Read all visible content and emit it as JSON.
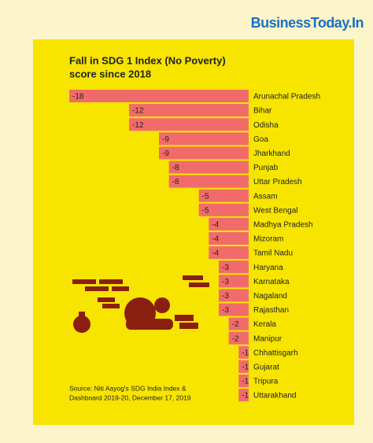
{
  "site_name": "BusinessToday.In",
  "chart_data": {
    "type": "hbar",
    "title": [
      "Fall in SDG 1 Index (No Poverty)",
      "score since 2018"
    ],
    "source": [
      "Source: Niti Aayog's SDG India Index &",
      "Dashboard 2019-20, December 17, 2019"
    ],
    "categories": [
      "Arunachal Pradesh",
      "Bihar",
      "Odisha",
      "Goa",
      "Jharkhand",
      "Punjab",
      "Uttar Pradesh",
      "Assam",
      "West Bengal",
      "Madhya Pradesh",
      "Mizoram",
      "Tamil Nadu",
      "Haryana",
      "Karnataka",
      "Nagaland",
      "Rajasthan",
      "Kerala",
      "Manipur",
      "Chhattisgarh",
      "Gujarat",
      "Tripura",
      "Uttarakhand"
    ],
    "values": [
      -18,
      -12,
      -12,
      -9,
      -9,
      -8,
      -8,
      -5,
      -5,
      -4,
      -4,
      -4,
      -3,
      -3,
      -3,
      -3,
      -2,
      -2,
      -1,
      -1,
      -1,
      -1
    ],
    "color": "#f26b6b",
    "xlim": [
      -18,
      0
    ]
  }
}
